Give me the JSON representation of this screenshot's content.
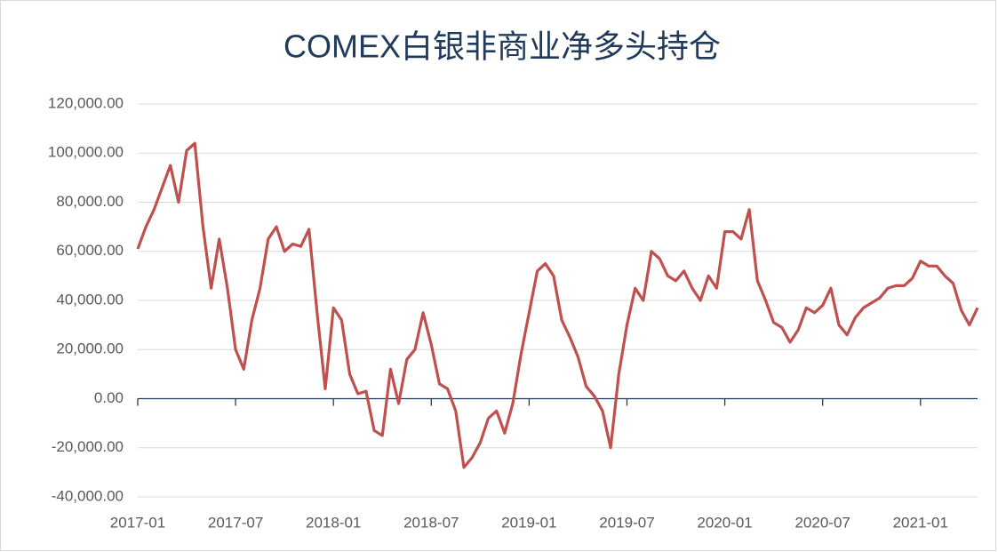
{
  "chart_data": {
    "type": "line",
    "title": "COMEX白银非商业净多头持仓",
    "categories": [
      "2017-01",
      null,
      null,
      null,
      null,
      null,
      null,
      null,
      null,
      null,
      null,
      null,
      "2017-07",
      null,
      null,
      null,
      null,
      null,
      null,
      null,
      null,
      null,
      null,
      null,
      "2018-01",
      null,
      null,
      null,
      null,
      null,
      null,
      null,
      null,
      null,
      null,
      null,
      "2018-07",
      null,
      null,
      null,
      null,
      null,
      null,
      null,
      null,
      null,
      null,
      null,
      "2019-01",
      null,
      null,
      null,
      null,
      null,
      null,
      null,
      null,
      null,
      null,
      null,
      "2019-07",
      null,
      null,
      null,
      null,
      null,
      null,
      null,
      null,
      null,
      null,
      null,
      "2020-01",
      null,
      null,
      null,
      null,
      null,
      null,
      null,
      null,
      null,
      null,
      null,
      "2020-07",
      null,
      null,
      null,
      null,
      null,
      null,
      null,
      null,
      null,
      null,
      null,
      "2021-01",
      null,
      null,
      null,
      null,
      null,
      null,
      null
    ],
    "series": [
      {
        "color": "#c0504d",
        "values": [
          61000,
          70000,
          77000,
          86000,
          95000,
          80000,
          101000,
          104000,
          70000,
          45000,
          65000,
          45000,
          20000,
          12000,
          32000,
          45000,
          65000,
          70000,
          60000,
          63000,
          62000,
          69000,
          35000,
          4000,
          37000,
          32000,
          10000,
          2000,
          3000,
          -13000,
          -15000,
          12000,
          -2000,
          16000,
          20000,
          35000,
          22000,
          6000,
          4000,
          -5000,
          -28000,
          -24000,
          -18000,
          -8000,
          -5000,
          -14000,
          -2000,
          18000,
          35000,
          52000,
          55000,
          50000,
          32000,
          25000,
          17000,
          5000,
          1000,
          -5000,
          -20000,
          10000,
          30000,
          45000,
          40000,
          60000,
          57000,
          50000,
          48000,
          52000,
          45000,
          40000,
          50000,
          45000,
          68000,
          68000,
          65000,
          77000,
          48000,
          40000,
          31000,
          29000,
          23000,
          28000,
          37000,
          35000,
          38000,
          45000,
          30000,
          26000,
          33000,
          37000,
          39000,
          41000,
          45000,
          46000,
          46000,
          49000,
          56000,
          54000,
          54000,
          50000,
          47000,
          36000,
          30000,
          37000
        ]
      }
    ],
    "ylim": [
      -40000,
      120000
    ],
    "yticks": [
      {
        "value": -40000,
        "label": "-40,000.00"
      },
      {
        "value": -20000,
        "label": "-20,000.00"
      },
      {
        "value": 0,
        "label": "0.00"
      },
      {
        "value": 20000,
        "label": "20,000.00"
      },
      {
        "value": 40000,
        "label": "40,000.00"
      },
      {
        "value": 60000,
        "label": "60,000.00"
      },
      {
        "value": 80000,
        "label": "80,000.00"
      },
      {
        "value": 100000,
        "label": "100,000.00"
      },
      {
        "value": 120000,
        "label": "120,000.00"
      }
    ],
    "grid": true
  }
}
